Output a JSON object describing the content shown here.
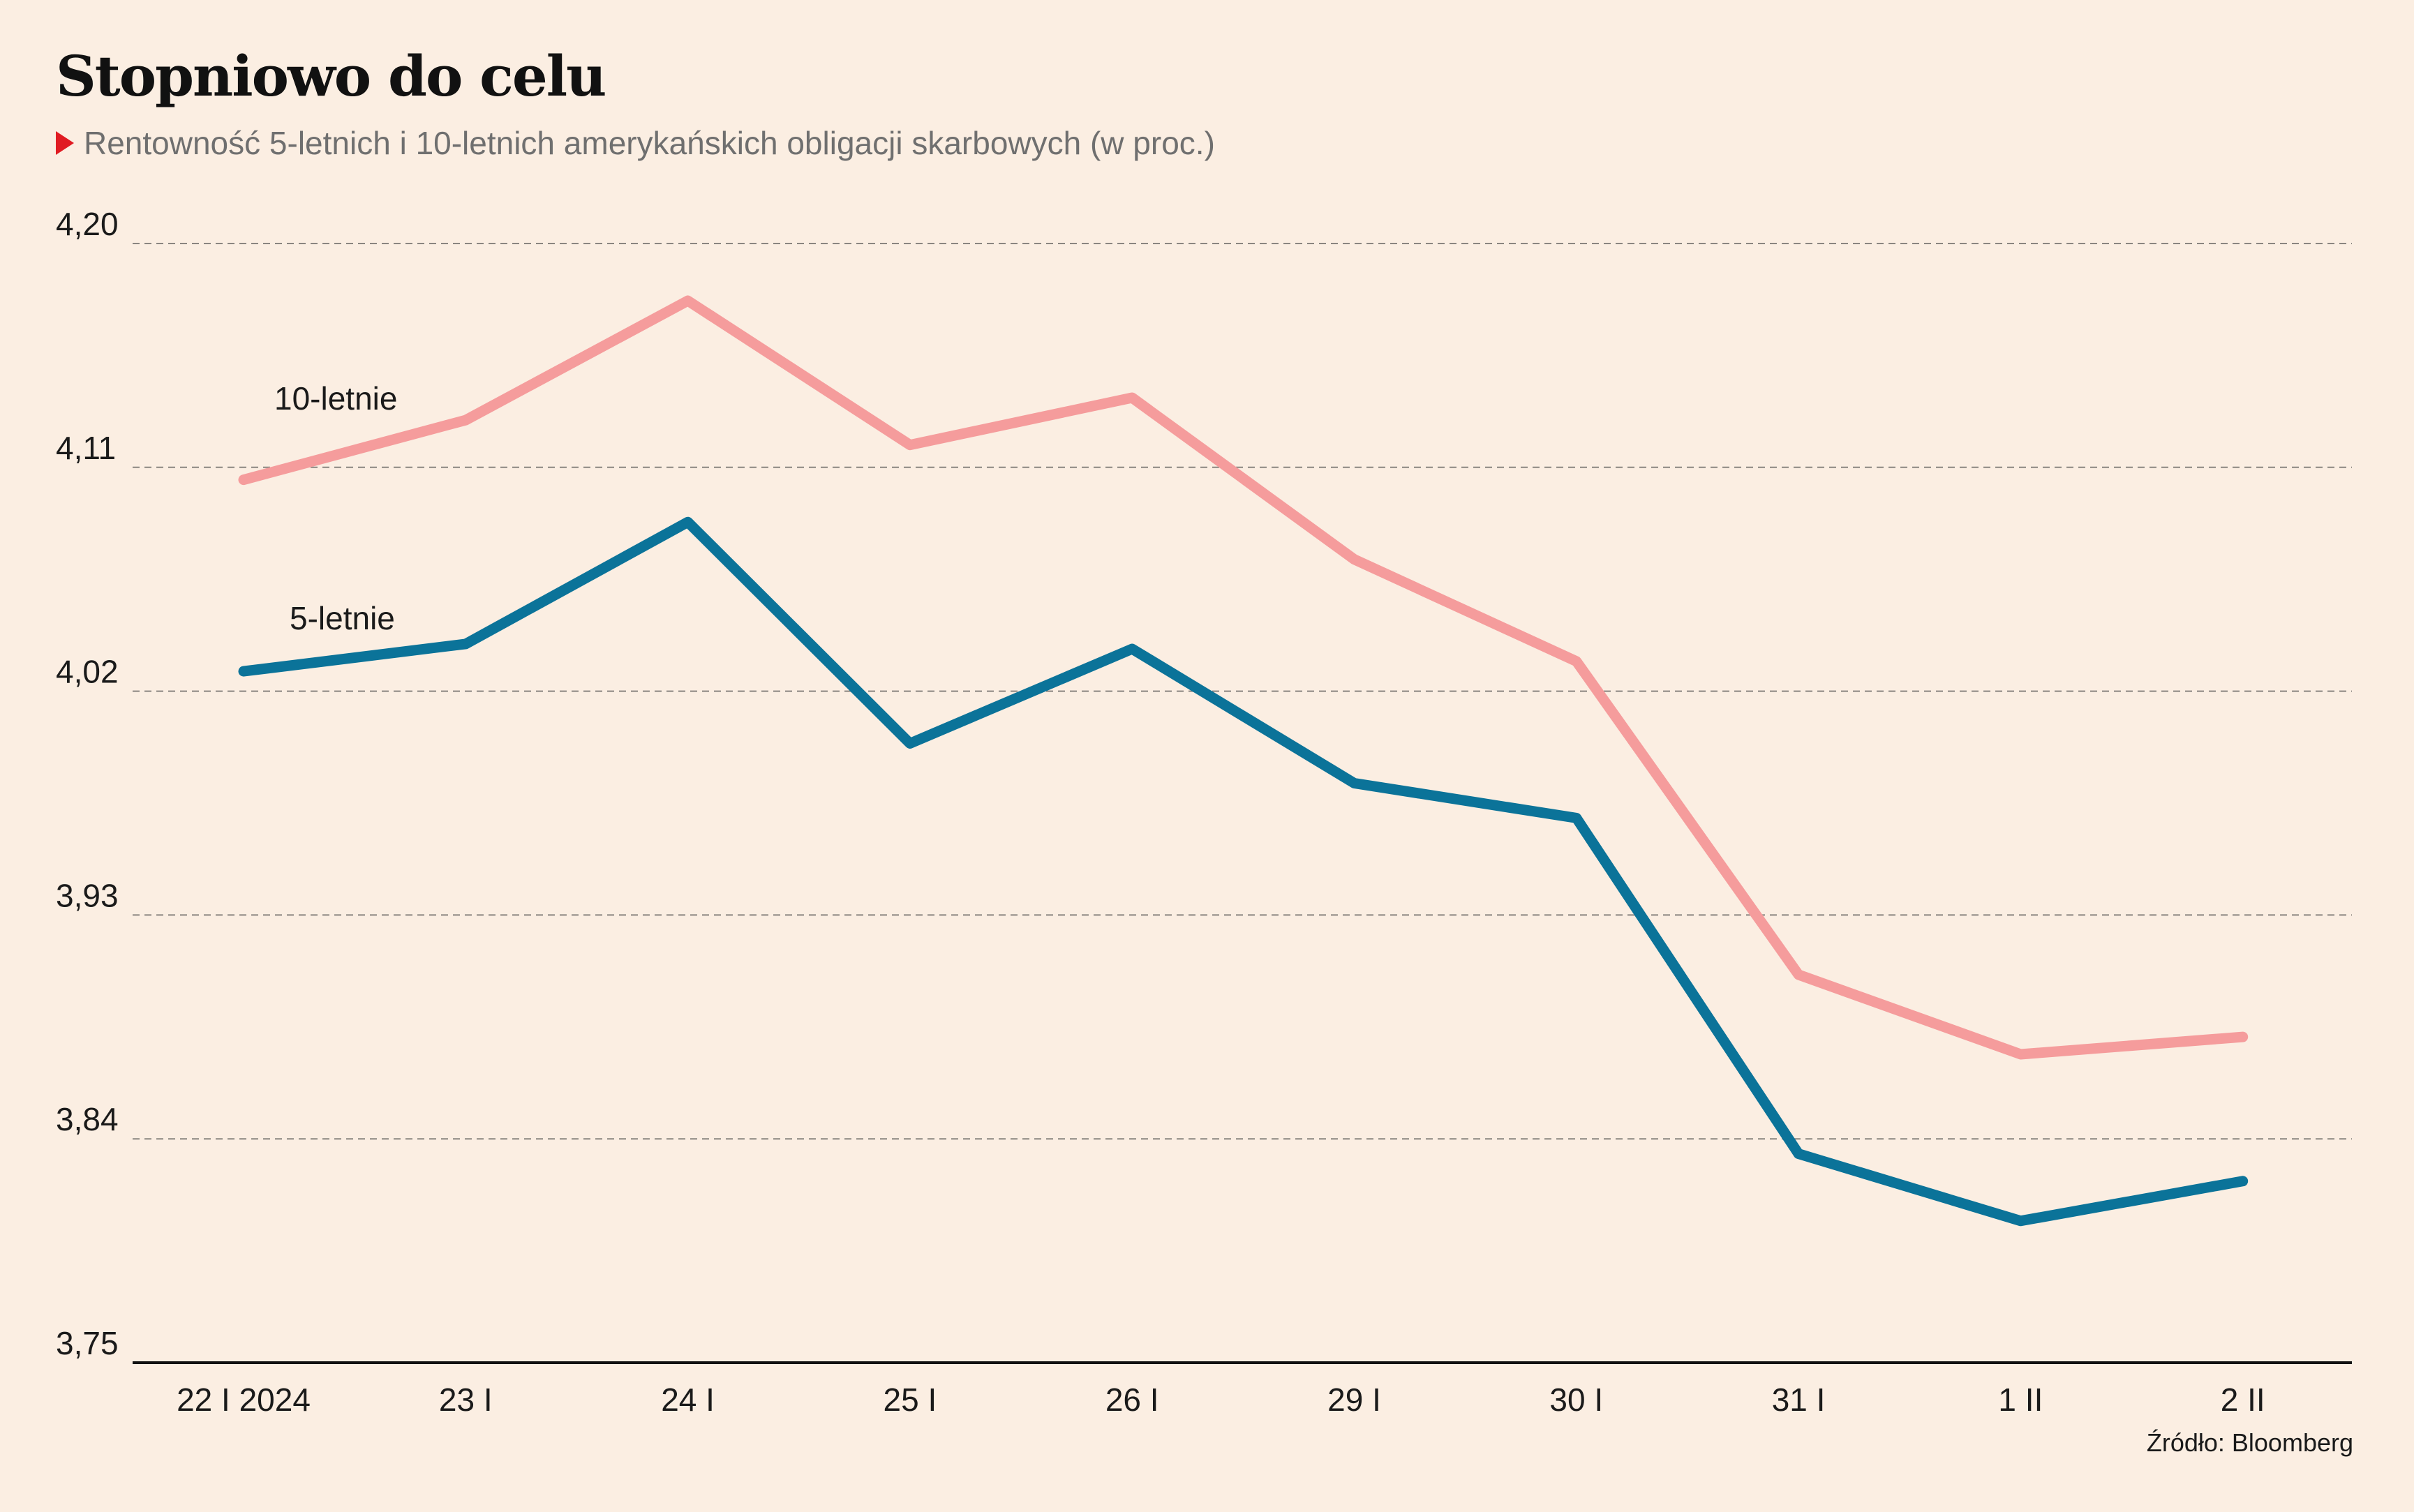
{
  "header": {
    "title": "Stopniowo do celu",
    "subtitle": "Rentowność 5-letnich i 10-letnich amerykańskich obligacji skarbowych (w proc.)"
  },
  "source": "Źródło: Bloomberg",
  "colors": {
    "background": "#fbeee2",
    "series_10y": "#f59c9c",
    "series_5y": "#0b7399",
    "marker": "#e01b22"
  },
  "chart_data": {
    "type": "line",
    "categories": [
      "22 I 2024",
      "23 I",
      "24 I",
      "25 I",
      "26 I",
      "29 I",
      "30 I",
      "31 I",
      "1 II",
      "2 II"
    ],
    "series": [
      {
        "name": "10-letnie",
        "values": [
          4.105,
          4.129,
          4.177,
          4.119,
          4.138,
          4.073,
          4.032,
          3.906,
          3.874,
          3.881
        ]
      },
      {
        "name": "5-letnie",
        "values": [
          4.028,
          4.039,
          4.088,
          3.999,
          4.037,
          3.983,
          3.969,
          3.834,
          3.807,
          3.823
        ]
      }
    ],
    "yticks": [
      "4,20",
      "4,11",
      "4,02",
      "3,93",
      "3,84",
      "3,75"
    ],
    "ylim": [
      3.75,
      4.2
    ],
    "grid": true,
    "xlabel": "",
    "ylabel": ""
  }
}
